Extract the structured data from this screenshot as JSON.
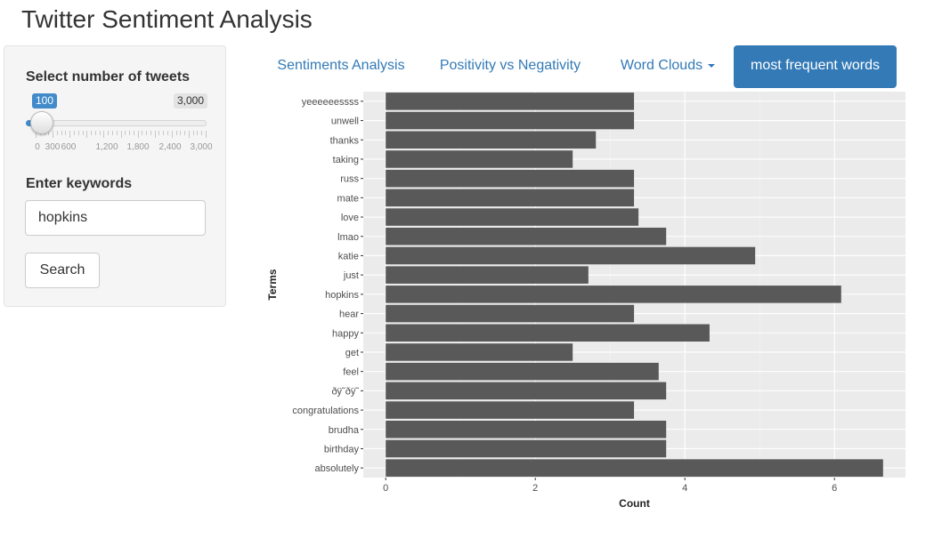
{
  "app": {
    "title": "Twitter Sentiment Analysis"
  },
  "sidebar": {
    "slider": {
      "label": "Select number of tweets",
      "value": 100,
      "value_label": "100",
      "min": 0,
      "max": 3000,
      "max_label": "3,000",
      "tick_labels": [
        "0",
        "300",
        "600",
        "1,200",
        "1,800",
        "2,400",
        "3,000"
      ],
      "accent_color": "#428bca"
    },
    "keywords": {
      "label": "Enter keywords",
      "value": "hopkins"
    },
    "search_button": {
      "label": "Search"
    }
  },
  "tabs": [
    {
      "label": "Sentiments Analysis",
      "active": false
    },
    {
      "label": "Positivity vs Negativity",
      "active": false
    },
    {
      "label": "Word Clouds",
      "active": false,
      "dropdown": true,
      "icon": "chevron-down-icon"
    },
    {
      "label": "most frequent words",
      "active": true
    }
  ],
  "colors": {
    "tab_link": "#337ab7",
    "tab_active_bg": "#337ab7",
    "bar_fill": "#595959",
    "panel_bg": "#ebebeb"
  },
  "chart_data": {
    "type": "bar",
    "orientation": "horizontal",
    "categories": [
      "yeeeeeessss",
      "unwell",
      "thanks",
      "taking",
      "russ",
      "mate",
      "love",
      "lmao",
      "katie",
      "just",
      "hopkins",
      "hear",
      "happy",
      "get",
      "feel",
      "ðÿ˜ðÿ˜",
      "congratulations",
      "brudha",
      "birthday",
      "absolutely"
    ],
    "values": [
      3.32,
      3.32,
      2.81,
      2.5,
      3.32,
      3.32,
      3.38,
      3.75,
      4.94,
      2.71,
      6.09,
      3.32,
      4.33,
      2.5,
      3.65,
      3.75,
      3.32,
      3.75,
      3.75,
      6.65
    ],
    "xlabel": "Count",
    "ylabel": "Terms",
    "xticks": [
      0,
      2,
      4,
      6
    ],
    "xlim": [
      -0.3,
      6.95
    ],
    "grid": true
  }
}
